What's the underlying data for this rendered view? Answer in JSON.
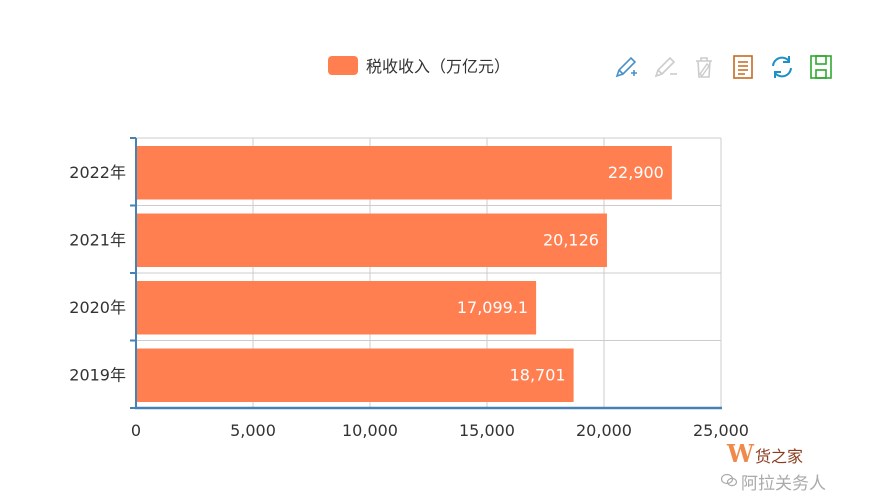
{
  "chart_data": {
    "type": "bar",
    "orientation": "horizontal",
    "categories": [
      "2022年",
      "2021年",
      "2020年",
      "2019年"
    ],
    "series": [
      {
        "name": "税收收入（万亿元）",
        "values": [
          22900,
          20126,
          17099.1,
          18701
        ],
        "color": "#ff7f50"
      }
    ],
    "value_labels": [
      "22,900",
      "20,126",
      "17,099.1",
      "18,701"
    ],
    "xlim": [
      0,
      25000
    ],
    "x_ticks": [
      0,
      5000,
      10000,
      15000,
      20000,
      25000
    ],
    "x_tick_labels": [
      "0",
      "5,000",
      "10,000",
      "15,000",
      "20,000",
      "25,000"
    ],
    "grid": true,
    "legend": "top-center",
    "axis_color": "#4682b4"
  },
  "toolbox": [
    {
      "icon": "mark-pen-icon",
      "color": "#4a90c8"
    },
    {
      "icon": "mark-undo-icon",
      "color": "#cccccc"
    },
    {
      "icon": "mark-clear-icon",
      "color": "#cccccc"
    },
    {
      "icon": "data-view-icon",
      "color": "#c66a1f"
    },
    {
      "icon": "restore-icon",
      "color": "#1e90c8"
    },
    {
      "icon": "save-image-icon",
      "color": "#2ea82e"
    }
  ],
  "watermark": {
    "logo": "W",
    "brand": "货之家",
    "sub": "阿拉关务人"
  }
}
